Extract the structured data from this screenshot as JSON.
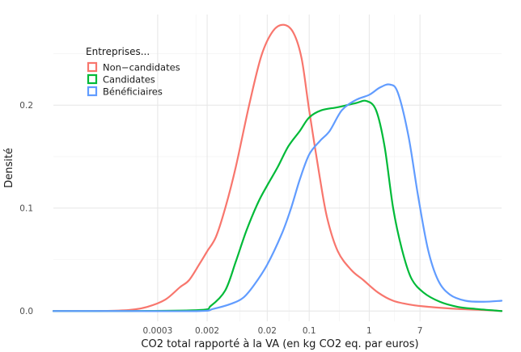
{
  "chart_data": {
    "type": "line",
    "xlabel": "CO2 total rapporté à la VA (en kg CO2 eq. par euros)",
    "ylabel": "Densité",
    "x_scale": "log10",
    "xlim": [
      5.5e-06,
      160
    ],
    "ylim": [
      -0.01,
      0.288
    ],
    "x_ticks": [
      {
        "value": 0.0003,
        "label": "0.0003"
      },
      {
        "value": 0.002,
        "label": "0.002"
      },
      {
        "value": 0.02,
        "label": "0.02"
      },
      {
        "value": 0.1,
        "label": "0.1"
      },
      {
        "value": 1,
        "label": "1"
      },
      {
        "value": 7,
        "label": "7"
      }
    ],
    "x_minor_grid": [
      0.0013,
      0.007,
      0.046,
      0.32,
      2.65
    ],
    "y_ticks": [
      {
        "value": 0.0,
        "label": "0.0"
      },
      {
        "value": 0.1,
        "label": "0.1"
      },
      {
        "value": 0.2,
        "label": "0.2"
      }
    ],
    "grid": true,
    "legend": {
      "title": "Entreprises...",
      "position": "top-left"
    },
    "series": [
      {
        "name": "Non−candidates",
        "color": "#F8766D",
        "points": [
          [
            5.5e-06,
            0.0
          ],
          [
            3e-05,
            0.0
          ],
          [
            0.0001,
            0.001
          ],
          [
            0.0002,
            0.004
          ],
          [
            0.0004,
            0.011
          ],
          [
            0.0007,
            0.023
          ],
          [
            0.001,
            0.03
          ],
          [
            0.0015,
            0.046
          ],
          [
            0.002,
            0.058
          ],
          [
            0.0028,
            0.072
          ],
          [
            0.004,
            0.1
          ],
          [
            0.006,
            0.14
          ],
          [
            0.01,
            0.2
          ],
          [
            0.016,
            0.248
          ],
          [
            0.025,
            0.272
          ],
          [
            0.038,
            0.278
          ],
          [
            0.055,
            0.27
          ],
          [
            0.075,
            0.245
          ],
          [
            0.1,
            0.195
          ],
          [
            0.15,
            0.13
          ],
          [
            0.2,
            0.09
          ],
          [
            0.3,
            0.058
          ],
          [
            0.5,
            0.04
          ],
          [
            0.8,
            0.03
          ],
          [
            1.4,
            0.018
          ],
          [
            2.5,
            0.01
          ],
          [
            5,
            0.006
          ],
          [
            10,
            0.004
          ],
          [
            30,
            0.002
          ],
          [
            80,
            0.001
          ],
          [
            160,
            0.0
          ]
        ]
      },
      {
        "name": "Candidates",
        "color": "#00BA38",
        "points": [
          [
            5.5e-06,
            0.0
          ],
          [
            0.0001,
            0.0
          ],
          [
            0.0015,
            0.001
          ],
          [
            0.0023,
            0.005
          ],
          [
            0.004,
            0.02
          ],
          [
            0.006,
            0.048
          ],
          [
            0.009,
            0.078
          ],
          [
            0.014,
            0.105
          ],
          [
            0.02,
            0.122
          ],
          [
            0.03,
            0.14
          ],
          [
            0.045,
            0.16
          ],
          [
            0.07,
            0.175
          ],
          [
            0.1,
            0.188
          ],
          [
            0.16,
            0.195
          ],
          [
            0.3,
            0.198
          ],
          [
            0.6,
            0.202
          ],
          [
            0.9,
            0.204
          ],
          [
            1.3,
            0.195
          ],
          [
            1.8,
            0.16
          ],
          [
            2.5,
            0.1
          ],
          [
            3.5,
            0.06
          ],
          [
            5,
            0.032
          ],
          [
            8,
            0.018
          ],
          [
            15,
            0.009
          ],
          [
            30,
            0.004
          ],
          [
            60,
            0.002
          ],
          [
            160,
            0.0
          ]
        ]
      },
      {
        "name": "Bénéficiaires",
        "color": "#619CFF",
        "points": [
          [
            5.5e-06,
            0.0
          ],
          [
            0.0001,
            0.0
          ],
          [
            0.0015,
            0.0
          ],
          [
            0.0025,
            0.002
          ],
          [
            0.005,
            0.007
          ],
          [
            0.008,
            0.013
          ],
          [
            0.012,
            0.025
          ],
          [
            0.02,
            0.045
          ],
          [
            0.035,
            0.075
          ],
          [
            0.05,
            0.1
          ],
          [
            0.07,
            0.128
          ],
          [
            0.1,
            0.152
          ],
          [
            0.15,
            0.165
          ],
          [
            0.22,
            0.175
          ],
          [
            0.35,
            0.195
          ],
          [
            0.6,
            0.205
          ],
          [
            1,
            0.21
          ],
          [
            1.5,
            0.217
          ],
          [
            2.2,
            0.22
          ],
          [
            3,
            0.212
          ],
          [
            4.5,
            0.17
          ],
          [
            6.5,
            0.112
          ],
          [
            9.5,
            0.06
          ],
          [
            14,
            0.03
          ],
          [
            22,
            0.016
          ],
          [
            40,
            0.01
          ],
          [
            80,
            0.009
          ],
          [
            160,
            0.01
          ]
        ]
      }
    ]
  }
}
